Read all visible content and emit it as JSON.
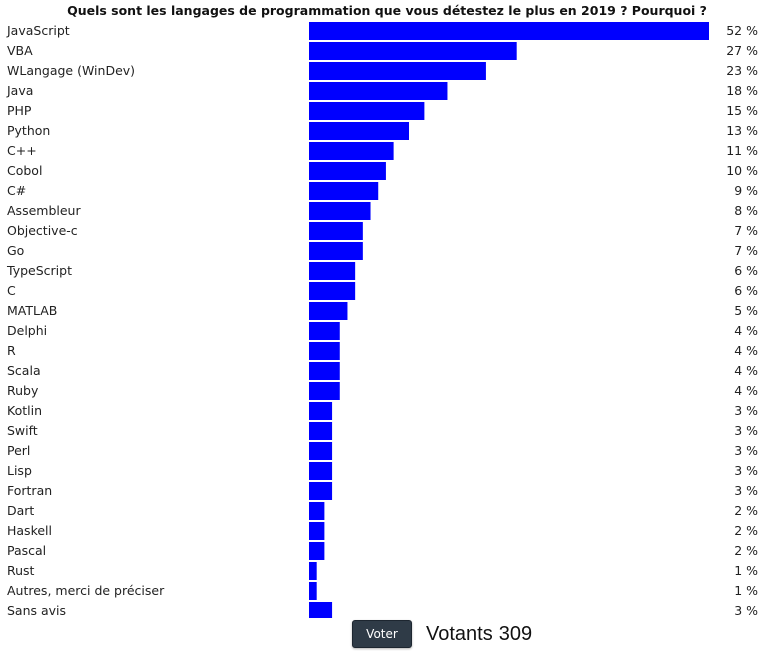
{
  "poll": {
    "title": "Quels sont les langages de programmation que vous détestez le plus en 2019 ? Pourquoi ?",
    "vote_button_label": "Voter",
    "voters_label": "Votants",
    "voters_count": "309",
    "bar_color": "#0000ff"
  },
  "chart_data": {
    "type": "bar",
    "orientation": "horizontal",
    "title": "Quels sont les langages de programmation que vous détestez le plus en 2019 ? Pourquoi ?",
    "value_suffix": " %",
    "xlim": [
      0,
      52
    ],
    "grid": false,
    "categories": [
      "JavaScript",
      "VBA",
      "WLangage (WinDev)",
      "Java",
      "PHP",
      "Python",
      "C++",
      "Cobol",
      "C#",
      "Assembleur",
      "Objective-c",
      "Go",
      "TypeScript",
      "C",
      "MATLAB",
      "Delphi",
      "R",
      "Scala",
      "Ruby",
      "Kotlin",
      "Swift",
      "Perl",
      "Lisp",
      "Fortran",
      "Dart",
      "Haskell",
      "Pascal",
      "Rust",
      "Autres, merci de préciser",
      "Sans avis"
    ],
    "values": [
      52,
      27,
      23,
      18,
      15,
      13,
      11,
      10,
      9,
      8,
      7,
      7,
      6,
      6,
      5,
      4,
      4,
      4,
      4,
      3,
      3,
      3,
      3,
      3,
      2,
      2,
      2,
      1,
      1,
      3
    ]
  }
}
